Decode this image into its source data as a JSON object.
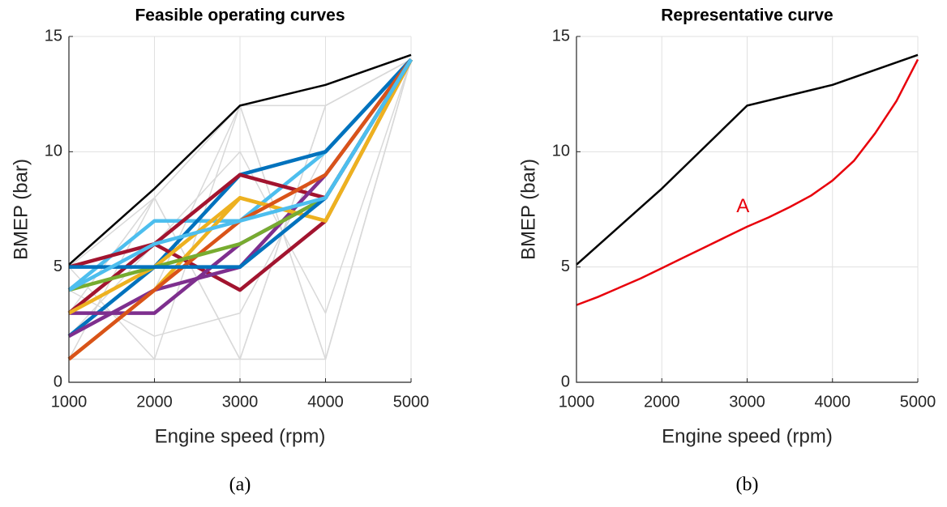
{
  "chart_data": [
    {
      "type": "line",
      "title": "Feasible operating curves",
      "xlabel": "Engine speed (rpm)",
      "ylabel": "BMEP (bar)",
      "caption": "(a)",
      "x": [
        1000,
        2000,
        3000,
        4000,
        5000
      ],
      "xlim": [
        1000,
        5000
      ],
      "xticks": [
        1000,
        2000,
        3000,
        4000,
        5000
      ],
      "ylim": [
        0,
        15
      ],
      "yticks": [
        0,
        5,
        10,
        15
      ],
      "grid": true,
      "series": [
        {
          "color": "#d9d9d9",
          "values": [
            1,
            1,
            1,
            1,
            14
          ]
        },
        {
          "color": "#d9d9d9",
          "values": [
            5,
            8,
            12,
            12,
            14
          ]
        },
        {
          "color": "#d9d9d9",
          "values": [
            1,
            8,
            1,
            12,
            14
          ]
        },
        {
          "color": "#d9d9d9",
          "values": [
            5,
            1,
            12,
            1,
            14
          ]
        },
        {
          "color": "#d9d9d9",
          "values": [
            3,
            8,
            1,
            12,
            14
          ]
        },
        {
          "color": "#d9d9d9",
          "values": [
            1,
            4,
            12,
            1,
            14
          ]
        },
        {
          "color": "#d9d9d9",
          "values": [
            2,
            6,
            10,
            3,
            14
          ]
        },
        {
          "color": "#d9d9d9",
          "values": [
            4,
            2,
            3,
            10,
            14
          ]
        },
        {
          "color": "#4DBEEE",
          "values": [
            4,
            7,
            7,
            10,
            14
          ]
        },
        {
          "color": "#0072BD",
          "values": [
            2,
            5,
            9,
            10,
            14
          ]
        },
        {
          "color": "#A2142F",
          "values": [
            5,
            6,
            9,
            8,
            14
          ]
        },
        {
          "color": "#A2142F",
          "values": [
            3,
            6,
            4,
            7,
            14
          ]
        },
        {
          "color": "#7E2F8E",
          "values": [
            3,
            3,
            6,
            8,
            14
          ]
        },
        {
          "color": "#7E2F8E",
          "values": [
            2,
            4,
            5,
            9,
            14
          ]
        },
        {
          "color": "#EDB120",
          "values": [
            1,
            4,
            8,
            7,
            14
          ]
        },
        {
          "color": "#EDB120",
          "values": [
            3,
            5,
            8,
            7,
            14
          ]
        },
        {
          "color": "#D95319",
          "values": [
            1,
            4,
            7,
            9,
            14
          ]
        },
        {
          "color": "#77AC30",
          "values": [
            4,
            5,
            6,
            8,
            14
          ]
        },
        {
          "color": "#0072BD",
          "values": [
            5,
            5,
            5,
            8,
            14
          ]
        },
        {
          "color": "#4DBEEE",
          "values": [
            4,
            6,
            7,
            8,
            14
          ]
        },
        {
          "color": "#000000",
          "values": [
            5.1,
            8.4,
            12,
            12.9,
            14.2
          ]
        }
      ]
    },
    {
      "type": "line",
      "title": "Representative curve",
      "xlabel": "Engine speed (rpm)",
      "ylabel": "BMEP (bar)",
      "caption": "(b)",
      "annotation": "A",
      "x": [
        1000,
        2000,
        3000,
        4000,
        5000
      ],
      "xlim": [
        1000,
        5000
      ],
      "xticks": [
        1000,
        2000,
        3000,
        4000,
        5000
      ],
      "ylim": [
        0,
        15
      ],
      "yticks": [
        0,
        5,
        10,
        15
      ],
      "grid": true,
      "series": [
        {
          "color": "#000000",
          "values": [
            5.1,
            8.4,
            12,
            12.9,
            14.2
          ]
        },
        {
          "color": "#e8000b",
          "x": [
            1000,
            1250,
            1500,
            1750,
            2000,
            2250,
            2500,
            2750,
            3000,
            3250,
            3500,
            3750,
            4000,
            4250,
            4500,
            4750,
            5000
          ],
          "values": [
            3.35,
            3.7,
            4.1,
            4.5,
            4.95,
            5.4,
            5.85,
            6.3,
            6.75,
            7.15,
            7.6,
            8.1,
            8.75,
            9.6,
            10.8,
            12.2,
            14
          ]
        }
      ]
    }
  ]
}
